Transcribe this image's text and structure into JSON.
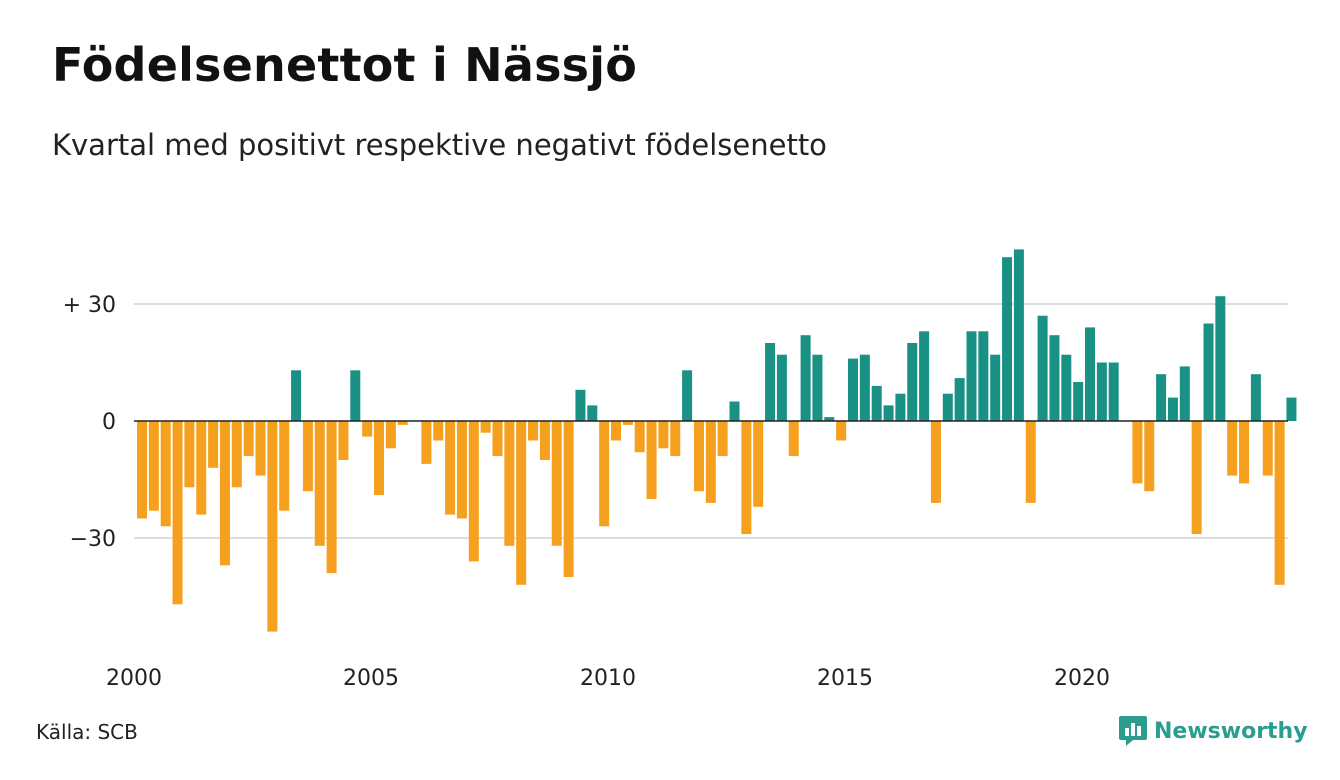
{
  "header": {
    "title": "Födelsenettot i Nässjö",
    "subtitle": "Kvartal med positivt respektive negativt födelsenetto"
  },
  "footer": {
    "source": "Källa: SCB",
    "brand": "Newsworthy"
  },
  "colors": {
    "positive": "#1a9185",
    "negative": "#f5a01e",
    "grid": "#dddddd",
    "zero_line": "#222222",
    "brand": "#2a9d8f"
  },
  "chart_data": {
    "type": "bar",
    "title": "Födelsenettot i Nässjö",
    "subtitle": "Kvartal med positivt respektive negativt födelsenetto",
    "xlabel": "",
    "ylabel": "",
    "x_start": "2000 Q1",
    "x_end": "2024 Q2",
    "ylim": [
      -60,
      45
    ],
    "y_ticks": [
      {
        "value": 30,
        "label": "+ 30"
      },
      {
        "value": 0,
        "label": "0"
      },
      {
        "value": -30,
        "label": "−30"
      }
    ],
    "x_ticks": [
      {
        "label": "2000",
        "index": 0
      },
      {
        "label": "2005",
        "index": 20
      },
      {
        "label": "2010",
        "index": 40
      },
      {
        "label": "2015",
        "index": 60
      },
      {
        "label": "2020",
        "index": 80
      }
    ],
    "grid": true,
    "legend": "none",
    "values": [
      -25,
      -23,
      -27,
      -47,
      -17,
      -24,
      -12,
      -37,
      -17,
      -9,
      -14,
      -54,
      -23,
      13,
      -18,
      -32,
      -39,
      -10,
      13,
      -4,
      -19,
      -7,
      -1,
      0,
      -11,
      -5,
      -24,
      -25,
      -36,
      -3,
      -9,
      -32,
      -42,
      -5,
      -10,
      -32,
      -40,
      8,
      4,
      -27,
      -5,
      -1,
      -8,
      -20,
      -7,
      -9,
      13,
      -18,
      -21,
      -9,
      5,
      -29,
      -22,
      20,
      17,
      -9,
      22,
      17,
      1,
      -5,
      16,
      17,
      9,
      4,
      7,
      20,
      23,
      -21,
      7,
      11,
      23,
      23,
      17,
      42,
      44,
      -21,
      27,
      22,
      17,
      10,
      24,
      15,
      15,
      0,
      -16,
      -18,
      12,
      6,
      14,
      -29,
      25,
      32,
      -14,
      -16,
      12,
      -14,
      -42,
      6
    ]
  }
}
